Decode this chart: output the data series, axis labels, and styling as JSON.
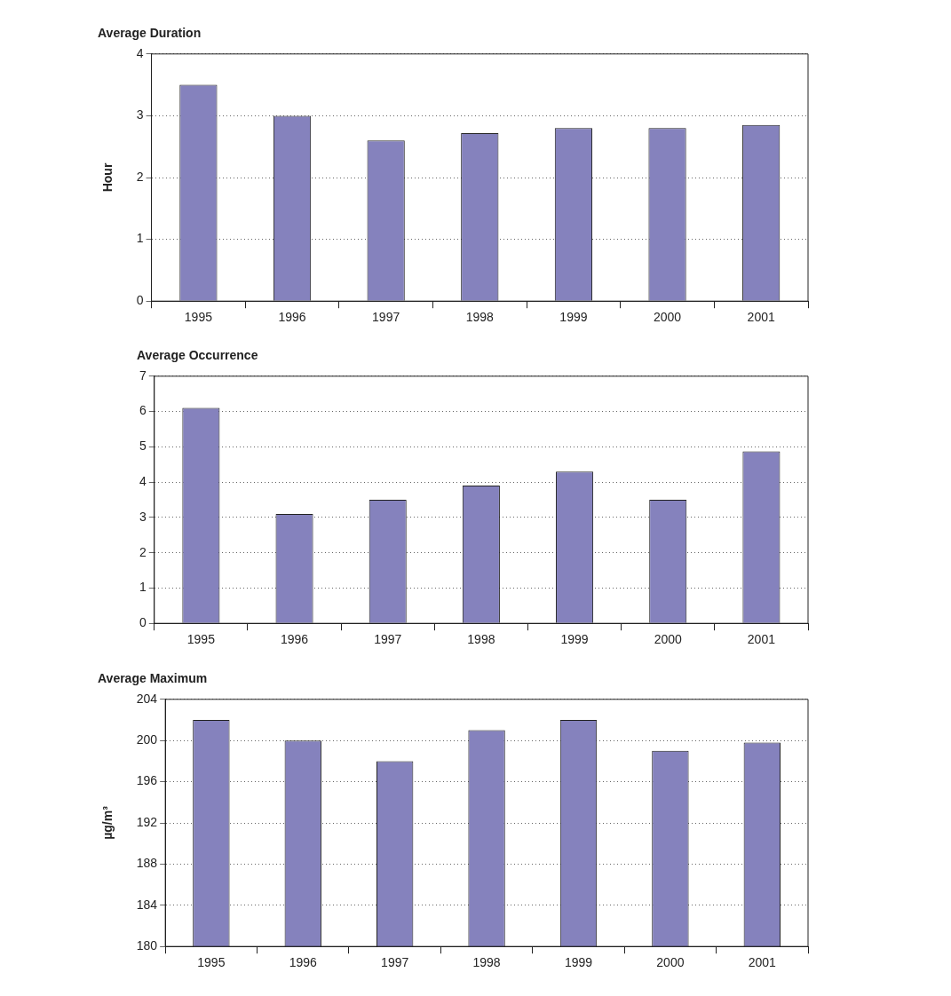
{
  "chart_data": [
    {
      "type": "bar",
      "title": "Average Duration",
      "ylabel": "Hour",
      "categories": [
        "1995",
        "1996",
        "1997",
        "1998",
        "1999",
        "2000",
        "2001"
      ],
      "values": [
        3.5,
        3.0,
        2.6,
        2.72,
        2.8,
        2.8,
        2.85
      ],
      "color": "#8582bd",
      "ylim": [
        0,
        4
      ],
      "yticks": [
        0,
        1,
        2,
        3,
        4
      ],
      "grid": "y",
      "legend": false
    },
    {
      "type": "bar",
      "title": "Average Occurrence",
      "categories": [
        "1995",
        "1996",
        "1997",
        "1998",
        "1999",
        "2000",
        "2001"
      ],
      "values": [
        6.1,
        3.1,
        3.5,
        3.9,
        4.3,
        3.5,
        4.87
      ],
      "color": "#8582bd",
      "ylim": [
        0,
        7
      ],
      "yticks": [
        0,
        1,
        2,
        3,
        4,
        5,
        6,
        7
      ],
      "grid": "y",
      "legend": false
    },
    {
      "type": "bar",
      "title": "Average Maximum",
      "ylabel": "µg/m³",
      "categories": [
        "1995",
        "1996",
        "1997",
        "1998",
        "1999",
        "2000",
        "2001"
      ],
      "values": [
        202,
        200,
        198,
        201,
        202,
        199,
        199.8
      ],
      "color": "#8582bd",
      "ylim": [
        180,
        204
      ],
      "yticks": [
        180,
        184,
        188,
        192,
        196,
        200,
        204
      ],
      "grid": "y",
      "legend": false
    }
  ]
}
